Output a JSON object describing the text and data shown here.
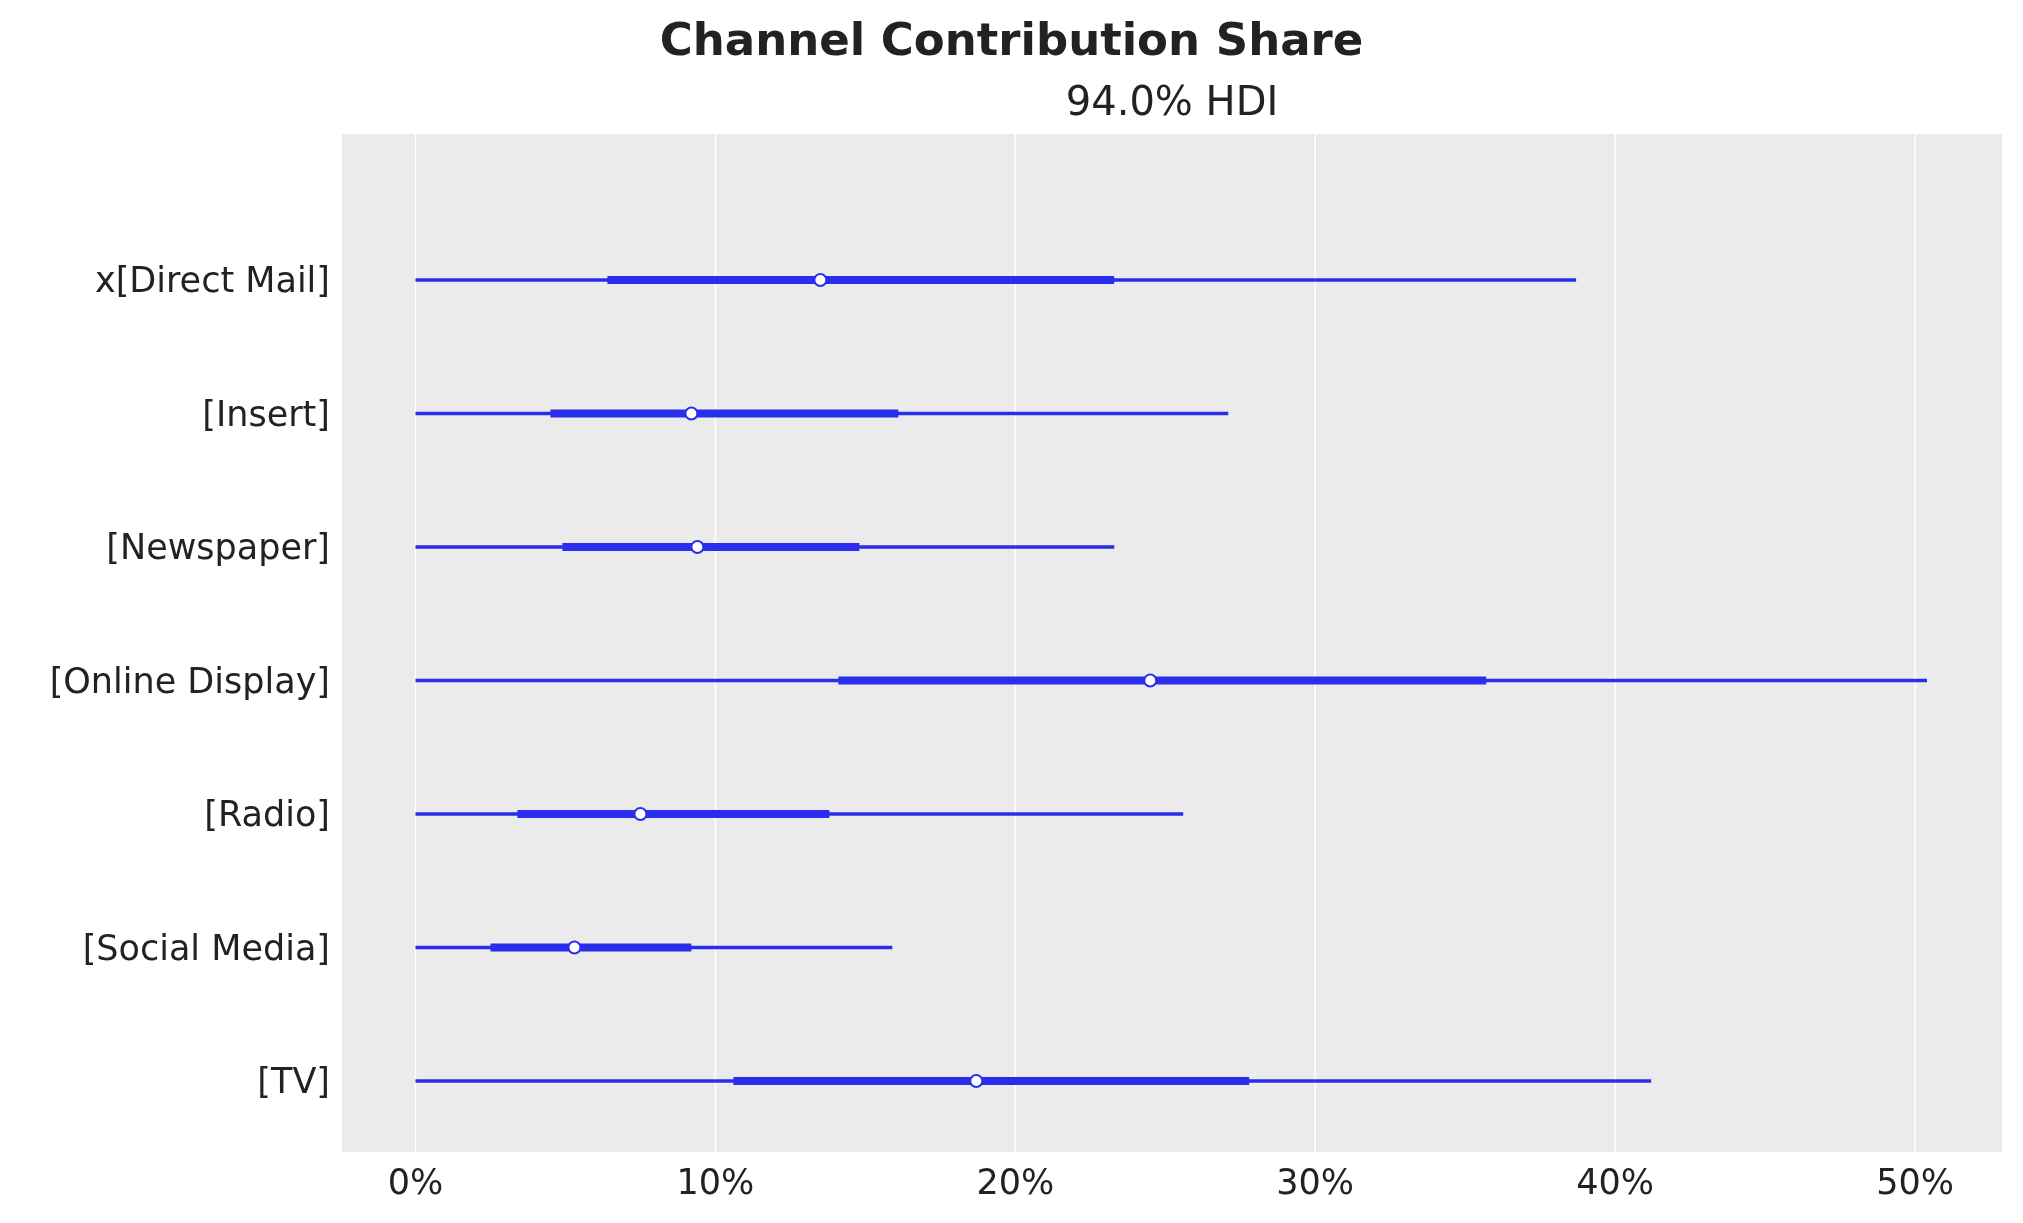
{
  "chart_data": {
    "type": "box",
    "orientation": "horizontal",
    "title": "Channel Contribution Share",
    "subtitle": "94.0% HDI",
    "categories": [
      "x[Direct Mail]",
      "[Insert]",
      "[Newspaper]",
      "[Online Display]",
      "[Radio]",
      "[Social Media]",
      "[TV]"
    ],
    "color": "#2a2eec",
    "boxes": [
      {
        "low": 0,
        "q1": 6.4,
        "median": 13.5,
        "q3": 23.3,
        "high": 38.7
      },
      {
        "low": 0,
        "q1": 4.5,
        "median": 9.2,
        "q3": 16.1,
        "high": 27.1
      },
      {
        "low": 0,
        "q1": 4.9,
        "median": 9.4,
        "q3": 14.8,
        "high": 23.3
      },
      {
        "low": 0,
        "q1": 14.1,
        "median": 24.5,
        "q3": 35.7,
        "high": 50.4
      },
      {
        "low": 0,
        "q1": 3.4,
        "median": 7.5,
        "q3": 13.8,
        "high": 25.6
      },
      {
        "low": 0,
        "q1": 2.5,
        "median": 5.3,
        "q3": 9.2,
        "high": 15.9
      },
      {
        "low": 0,
        "q1": 10.6,
        "median": 18.7,
        "q3": 27.8,
        "high": 41.2
      }
    ],
    "xlim": [
      -2.45,
      52.9
    ],
    "xticks": [
      {
        "value": 0,
        "label": "0%"
      },
      {
        "value": 10,
        "label": "10%"
      },
      {
        "value": 20,
        "label": "20%"
      },
      {
        "value": 30,
        "label": "30%"
      },
      {
        "value": 40,
        "label": "40%"
      },
      {
        "value": 50,
        "label": "50%"
      }
    ],
    "grid": "x",
    "marker": "circle"
  }
}
